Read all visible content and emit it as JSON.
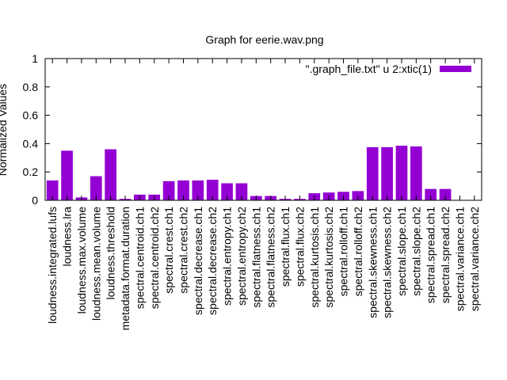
{
  "chart_data": {
    "type": "bar",
    "title": "Graph for eerie.wav.png",
    "ylabel": "Normalized Values",
    "xlabel": "",
    "ylim": [
      0,
      1
    ],
    "yticks": [
      "0",
      "0.2",
      "0.4",
      "0.6",
      "0.8",
      "1"
    ],
    "grid": false,
    "legend_position": "top-right",
    "bar_color": "#9400d3",
    "categories": [
      "loudness.integrated.lufs",
      "loudness.lra",
      "loudness.max.volume",
      "loudness.mean.volume",
      "loudness.threshold",
      "metadata.format.duration",
      "spectral.centroid.ch1",
      "spectral.centroid.ch2",
      "spectral.crest.ch1",
      "spectral.crest.ch2",
      "spectral.decrease.ch1",
      "spectral.decrease.ch2",
      "spectral.entropy.ch1",
      "spectral.entropy.ch2",
      "spectral.flatness.ch1",
      "spectral.flatness.ch2",
      "spectral.flux.ch1",
      "spectral.flux.ch2",
      "spectral.kurtosis.ch1",
      "spectral.kurtosis.ch2",
      "spectral.rolloff.ch1",
      "spectral.rolloff.ch2",
      "spectral.skewness.ch1",
      "spectral.skewness.ch2",
      "spectral.slope.ch1",
      "spectral.slope.ch2",
      "spectral.spread.ch1",
      "spectral.spread.ch2",
      "spectral.variance.ch1",
      "spectral.variance.ch2"
    ],
    "series": [
      {
        "name": "\".graph_file.txt\" u 2:xtic(1)",
        "values": [
          0.14,
          0.35,
          0.02,
          0.17,
          0.36,
          0.01,
          0.04,
          0.04,
          0.135,
          0.14,
          0.14,
          0.145,
          0.12,
          0.12,
          0.03,
          0.03,
          0.01,
          0.01,
          0.05,
          0.055,
          0.06,
          0.065,
          0.375,
          0.375,
          0.385,
          0.38,
          0.08,
          0.08,
          0.0,
          0.0
        ]
      }
    ]
  }
}
